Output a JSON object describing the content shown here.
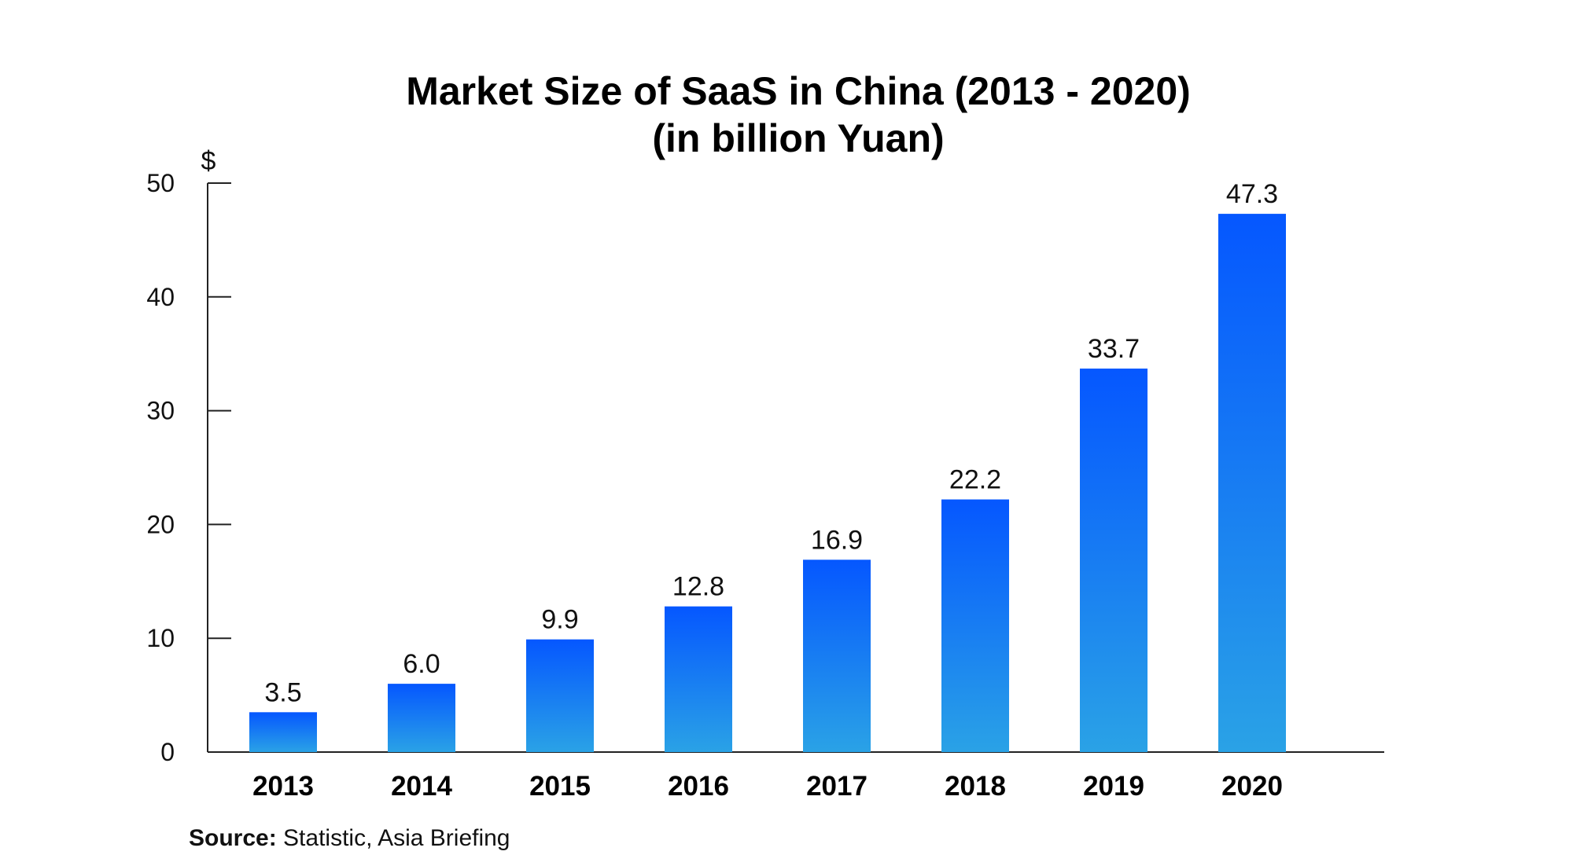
{
  "chart_data": {
    "type": "bar",
    "title": "Market Size of SaaS in China (2013 - 2020)",
    "subtitle": "(in billion Yuan)",
    "ylabel": "$",
    "xlabel": "",
    "categories": [
      "2013",
      "2014",
      "2015",
      "2016",
      "2017",
      "2018",
      "2019",
      "2020"
    ],
    "values": [
      3.5,
      6.0,
      9.9,
      12.8,
      16.9,
      22.2,
      33.7,
      47.3
    ],
    "value_labels": [
      "3.5",
      "6.0",
      "9.9",
      "12.8",
      "16.9",
      "22.2",
      "33.7",
      "47.3"
    ],
    "yticks": [
      0,
      10,
      20,
      30,
      40,
      50
    ],
    "ytick_labels": [
      "0",
      "10",
      "20",
      "30",
      "40",
      "50"
    ],
    "ylim": [
      0,
      50
    ],
    "grid": false,
    "legend": "none",
    "bar_gradient": {
      "top": "#0557FF",
      "bottom": "#2AA2E6"
    }
  },
  "source": {
    "label": "Source:",
    "text": " Statistic, Asia Briefing"
  }
}
